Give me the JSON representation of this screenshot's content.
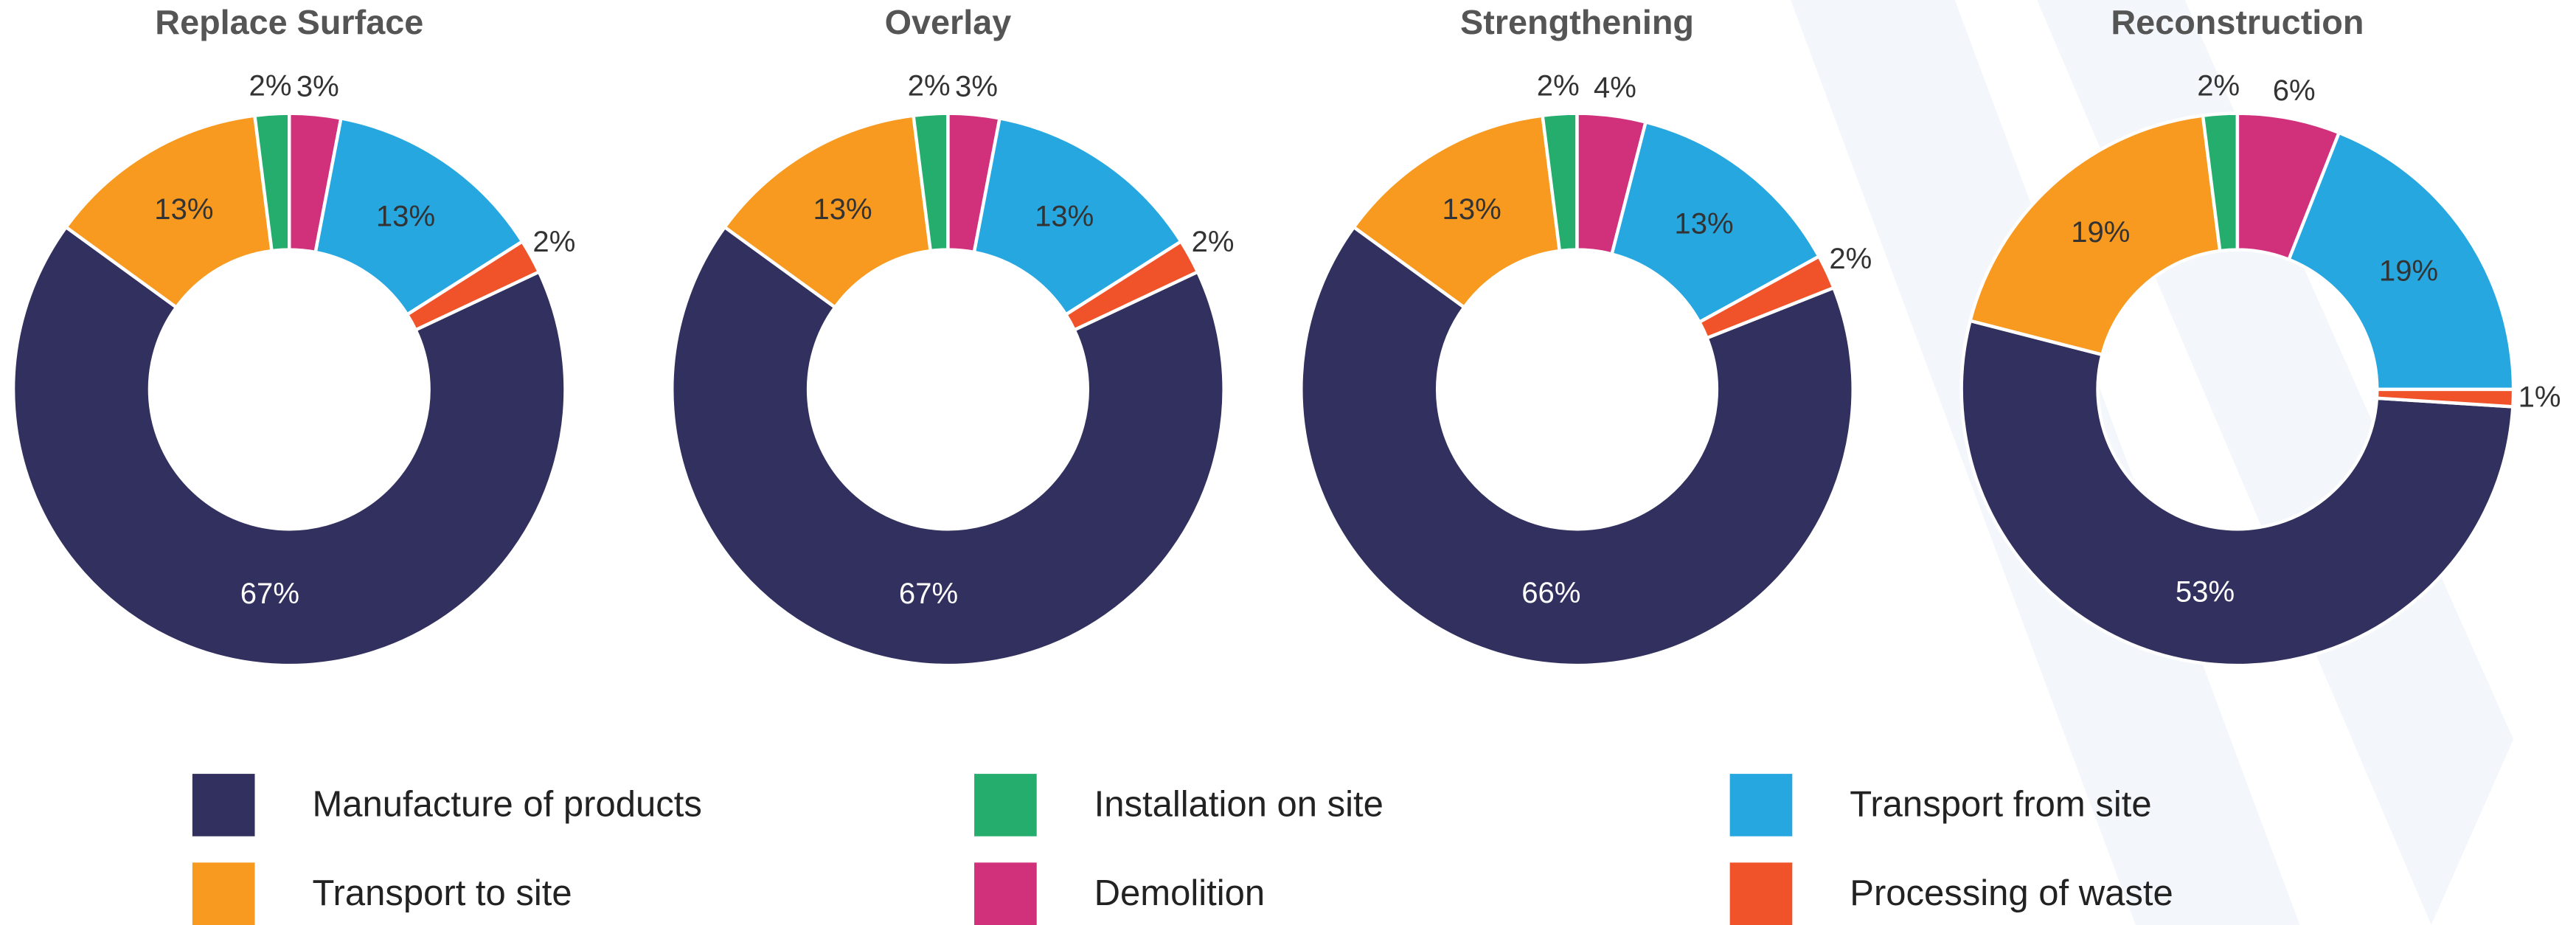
{
  "chart_data": [
    {
      "type": "donut",
      "title": "Replace Surface",
      "categories": [
        "Manufacture of products",
        "Transport to site",
        "Installation on site",
        "Demolition",
        "Transport from site",
        "Processing of waste"
      ],
      "colors": [
        "#31305e",
        "#f79a1f",
        "#25ad6e",
        "#d1307a",
        "#27a7e0",
        "#f0532a"
      ],
      "values": [
        67,
        13,
        2,
        3,
        13,
        2
      ],
      "value_labels": [
        "67%",
        "13%",
        "2%",
        "3%",
        "13%",
        "2%"
      ]
    },
    {
      "type": "donut",
      "title": "Overlay",
      "categories": [
        "Manufacture of products",
        "Transport to site",
        "Installation on site",
        "Demolition",
        "Transport from site",
        "Processing of waste"
      ],
      "colors": [
        "#31305e",
        "#f79a1f",
        "#25ad6e",
        "#d1307a",
        "#27a7e0",
        "#f0532a"
      ],
      "values": [
        67,
        13,
        2,
        3,
        13,
        2
      ],
      "value_labels": [
        "67%",
        "13%",
        "2%",
        "3%",
        "13%",
        "2%"
      ]
    },
    {
      "type": "donut",
      "title": "Strengthening",
      "categories": [
        "Manufacture of products",
        "Transport to site",
        "Installation on site",
        "Demolition",
        "Transport from site",
        "Processing of waste"
      ],
      "colors": [
        "#31305e",
        "#f79a1f",
        "#25ad6e",
        "#d1307a",
        "#27a7e0",
        "#f0532a"
      ],
      "values": [
        66,
        13,
        2,
        4,
        13,
        2
      ],
      "value_labels": [
        "66%",
        "13%",
        "2%",
        "4%",
        "13%",
        "2%"
      ]
    },
    {
      "type": "donut",
      "title": "Reconstruction",
      "categories": [
        "Manufacture of products",
        "Transport to site",
        "Installation on site",
        "Demolition",
        "Transport from site",
        "Processing of waste"
      ],
      "colors": [
        "#31305e",
        "#f79a1f",
        "#25ad6e",
        "#d1307a",
        "#27a7e0",
        "#f0532a"
      ],
      "values": [
        53,
        19,
        2,
        6,
        19,
        1
      ],
      "value_labels": [
        "53%",
        "19%",
        "2%",
        "6%",
        "19%",
        "1%"
      ]
    }
  ]
}
